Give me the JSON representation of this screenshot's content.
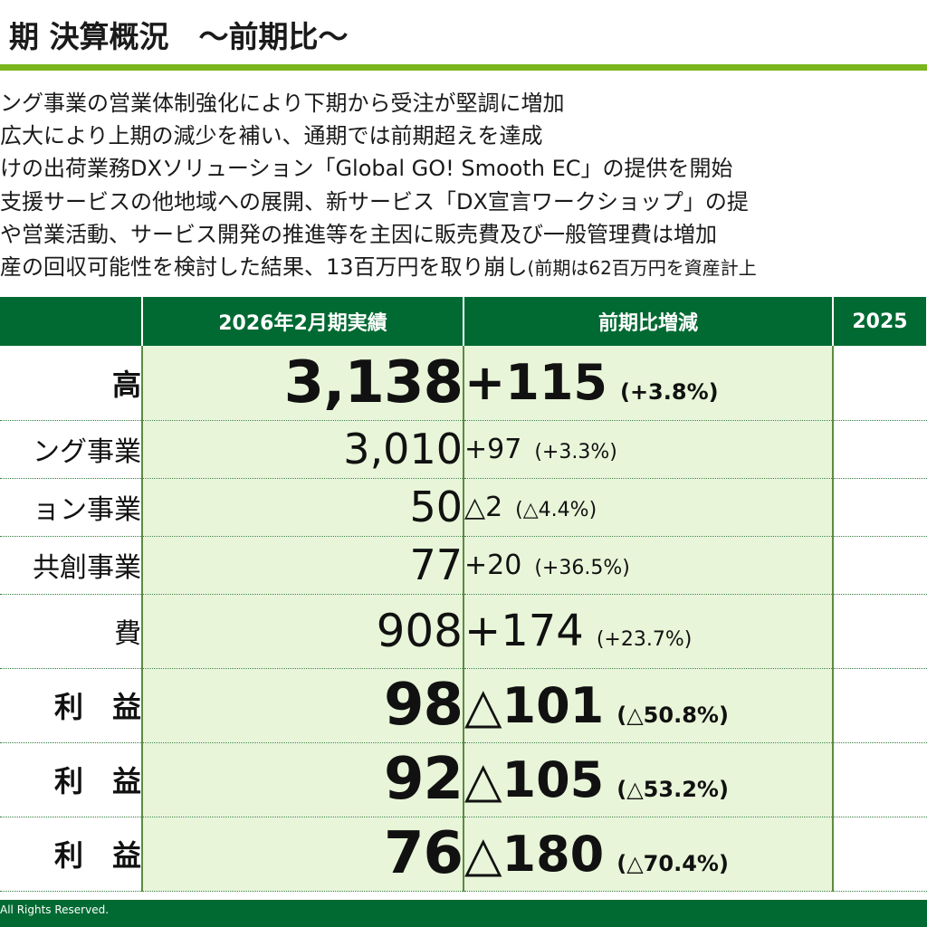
{
  "title": "期 決算概況　～前期比～",
  "bullets": [
    {
      "text": "ング事業の営業体制強化により下期から受注が堅調に増加"
    },
    {
      "text": "広大により上期の減少を補い、通期では前期超えを達成"
    },
    {
      "text": "けの出荷業務DXソリューション「Global GO! Smooth EC」の提供を開始"
    },
    {
      "text": "支援サービスの他地域への展開、新サービス「DX宣言ワークショップ」の提"
    },
    {
      "text": "や営業活動、サービス開発の推進等を主因に販売費及び一般管理費は増加"
    },
    {
      "text": "産の回収可能性を検討した結果、13百万円を取り崩し",
      "note": "(前期は62百万円を資産計上"
    }
  ],
  "table": {
    "headers": {
      "label": "",
      "actual": "2026年2月期実績",
      "change": "前期比増減",
      "prev": "2025"
    },
    "rows": [
      {
        "label": "高",
        "actual": "3,138",
        "change": "+115",
        "pct": "(+3.8%)",
        "style": "big",
        "height": 82
      },
      {
        "label": "ング事業",
        "actual": "3,010",
        "change": "+97",
        "pct": "(+3.3%)",
        "style": "small",
        "height": 64
      },
      {
        "label": "ョン事業",
        "actual": "50",
        "change": "△2",
        "pct": "(△4.4%)",
        "style": "small",
        "height": 64
      },
      {
        "label": "共創事業",
        "actual": "77",
        "change": "+20",
        "pct": "(+36.5%)",
        "style": "small",
        "height": 64
      },
      {
        "label": "費",
        "actual": "908",
        "change": "+174",
        "pct": "(+23.7%)",
        "style": "mid",
        "height": 82
      },
      {
        "label": "利　益",
        "actual": "98",
        "change": "△101",
        "pct": "(△50.8%)",
        "style": "big",
        "height": 82
      },
      {
        "label": "利　益",
        "actual": "92",
        "change": "△105",
        "pct": "(△53.2%)",
        "style": "big",
        "height": 82
      },
      {
        "label": "利　益",
        "actual": "76",
        "change": "△180",
        "pct": "(△70.4%)",
        "style": "big",
        "height": 82
      }
    ]
  },
  "footer": {
    "copyright": "All Rights Reserved."
  },
  "colors": {
    "header_green": "#006a32",
    "accent_lime": "#7ab51d",
    "cell_light_green": "#e8f5d8"
  }
}
